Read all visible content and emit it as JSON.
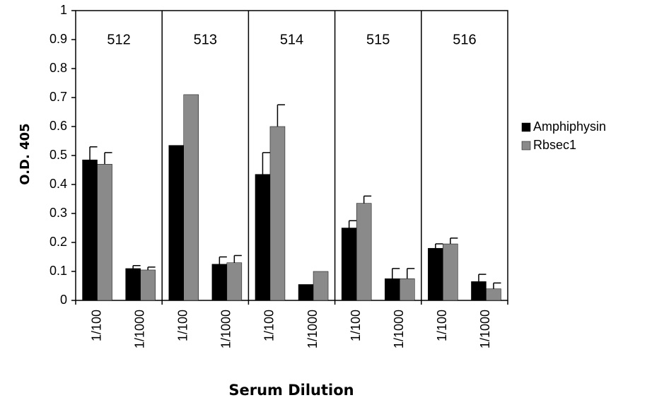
{
  "chart_data": {
    "type": "bar",
    "y_label": "O.D. 405",
    "x_label": "Serum Dilution",
    "groups": [
      "512",
      "513",
      "514",
      "515",
      "516"
    ],
    "categories": [
      "1/100",
      "1/1000",
      "1/100",
      "1/1000",
      "1/100",
      "1/1000",
      "1/100",
      "1/1000",
      "1/100",
      "1/1000"
    ],
    "series": [
      {
        "name": "Amphiphysin",
        "color": "#000000",
        "values": [
          0.485,
          0.11,
          0.535,
          0.125,
          0.435,
          0.055,
          0.25,
          0.075,
          0.18,
          0.065
        ],
        "errors": [
          0.045,
          0.01,
          null,
          0.025,
          0.075,
          null,
          0.025,
          0.035,
          0.015,
          0.025
        ]
      },
      {
        "name": "Rbsec1",
        "color": "#8a8a8a",
        "values": [
          0.47,
          0.105,
          0.71,
          0.13,
          0.6,
          0.1,
          0.335,
          0.075,
          0.195,
          0.04
        ],
        "errors": [
          0.04,
          0.01,
          null,
          0.025,
          0.075,
          null,
          0.025,
          0.035,
          0.02,
          0.02
        ]
      }
    ],
    "ylim": [
      0,
      1
    ],
    "yticks": [
      0,
      0.1,
      0.2,
      0.3,
      0.4,
      0.5,
      0.6,
      0.7,
      0.8,
      0.9,
      1
    ],
    "legend": "right"
  }
}
